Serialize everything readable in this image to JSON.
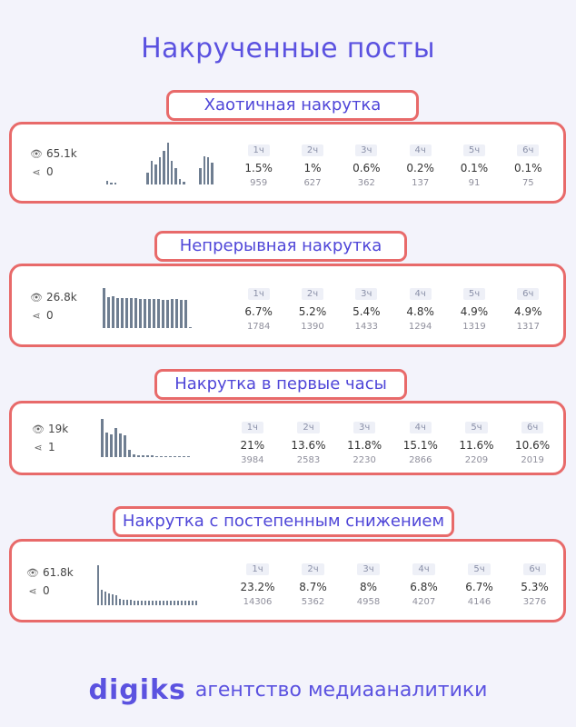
{
  "title": "Накрученные посты",
  "footer": {
    "logo": "digiks",
    "tagline": "агентство медиааналитики"
  },
  "sections": [
    {
      "label": "Хаотичная накрутка",
      "views": "65.1k",
      "shares": "0",
      "bars": [
        0.08,
        0.05,
        0.04,
        0.0,
        0.0,
        0.0,
        0.0,
        0.0,
        0.0,
        0.0,
        0.28,
        0.55,
        0.45,
        0.62,
        0.78,
        0.95,
        0.55,
        0.38,
        0.12,
        0.06,
        0.0,
        0.0,
        0.0,
        0.38,
        0.65,
        0.62,
        0.5
      ],
      "hours": [
        {
          "label": "1ч",
          "pct": "1.5%",
          "count": "959"
        },
        {
          "label": "2ч",
          "pct": "1%",
          "count": "627"
        },
        {
          "label": "3ч",
          "pct": "0.6%",
          "count": "362"
        },
        {
          "label": "4ч",
          "pct": "0.2%",
          "count": "137"
        },
        {
          "label": "5ч",
          "pct": "0.1%",
          "count": "91"
        },
        {
          "label": "6ч",
          "pct": "0.1%",
          "count": "75"
        }
      ]
    },
    {
      "label": "Непрерывная накрутка",
      "views": "26.8k",
      "shares": "0",
      "bars": [
        1.0,
        0.78,
        0.8,
        0.76,
        0.75,
        0.75,
        0.74,
        0.74,
        0.73,
        0.73,
        0.72,
        0.72,
        0.72,
        0.71,
        0.71,
        0.72,
        0.72,
        0.7,
        0.7,
        0.02,
        0.0,
        0.0
      ],
      "hours": [
        {
          "label": "1ч",
          "pct": "6.7%",
          "count": "1784"
        },
        {
          "label": "2ч",
          "pct": "5.2%",
          "count": "1390"
        },
        {
          "label": "3ч",
          "pct": "5.4%",
          "count": "1433"
        },
        {
          "label": "4ч",
          "pct": "4.8%",
          "count": "1294"
        },
        {
          "label": "5ч",
          "pct": "4.9%",
          "count": "1319"
        },
        {
          "label": "6ч",
          "pct": "4.9%",
          "count": "1317"
        }
      ]
    },
    {
      "label": "Накрутка в первые часы",
      "views": "19k",
      "shares": "1",
      "bars": [
        1.0,
        0.64,
        0.6,
        0.76,
        0.62,
        0.58,
        0.18,
        0.06,
        0.05,
        0.04,
        0.04,
        0.04,
        0.03,
        0.03,
        0.03,
        0.03,
        0.03,
        0.03,
        0.03,
        0.03
      ],
      "hours": [
        {
          "label": "1ч",
          "pct": "21%",
          "count": "3984"
        },
        {
          "label": "2ч",
          "pct": "13.6%",
          "count": "2583"
        },
        {
          "label": "3ч",
          "pct": "11.8%",
          "count": "2230"
        },
        {
          "label": "4ч",
          "pct": "15.1%",
          "count": "2866"
        },
        {
          "label": "5ч",
          "pct": "11.6%",
          "count": "2209"
        },
        {
          "label": "6ч",
          "pct": "10.6%",
          "count": "2019"
        }
      ]
    },
    {
      "label": "Накрутка с постепенным снижением",
      "views": "61.8k",
      "shares": "0",
      "bars": [
        1.0,
        0.38,
        0.33,
        0.3,
        0.28,
        0.25,
        0.15,
        0.14,
        0.13,
        0.13,
        0.12,
        0.12,
        0.12,
        0.12,
        0.12,
        0.12,
        0.12,
        0.12,
        0.12,
        0.12,
        0.12,
        0.12,
        0.12,
        0.12,
        0.12,
        0.12,
        0.12,
        0.12
      ],
      "hours": [
        {
          "label": "1ч",
          "pct": "23.2%",
          "count": "14306"
        },
        {
          "label": "2ч",
          "pct": "8.7%",
          "count": "5362"
        },
        {
          "label": "3ч",
          "pct": "8%",
          "count": "4958"
        },
        {
          "label": "4ч",
          "pct": "6.8%",
          "count": "4207"
        },
        {
          "label": "5ч",
          "pct": "6.7%",
          "count": "4146"
        },
        {
          "label": "6ч",
          "pct": "5.3%",
          "count": "3276"
        }
      ]
    }
  ]
}
